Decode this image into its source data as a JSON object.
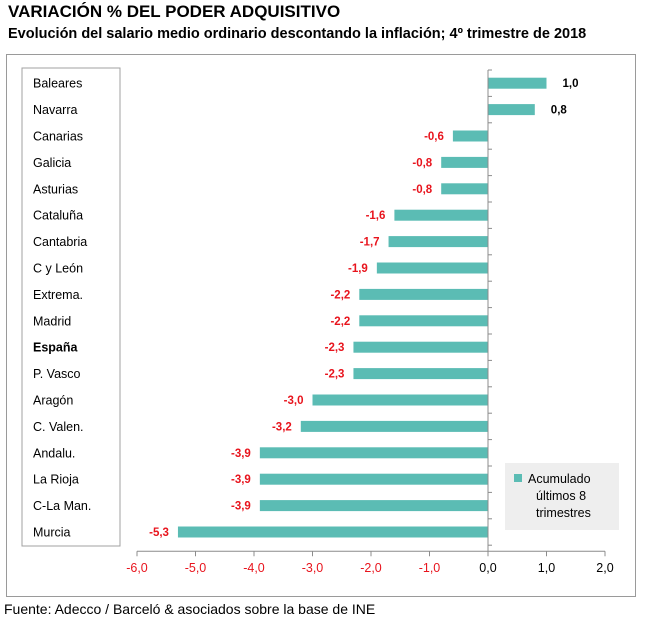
{
  "header": {
    "title": "VARIACIÓN % DEL PODER ADQUISITIVO",
    "subtitle": "Evolución del salario medio ordinario descontando la inflación; 4º trimestre de 2018"
  },
  "footer": {
    "source": "Fuente: Adecco / Barceló & asociados sobre la base de INE"
  },
  "colors": {
    "bar": "#5bbcb4",
    "positive_label": "#000000",
    "negative_label": "#e8141d",
    "negative_tick": "#e8141d",
    "axis": "#8c8c8c",
    "legend_bg": "#eeeeee"
  },
  "chart_data": {
    "type": "bar",
    "orientation": "horizontal",
    "categories": [
      "Baleares",
      "Navarra",
      "Canarias",
      "Galicia",
      "Asturias",
      "Cataluña",
      "Cantabria",
      "C y León",
      "Extrema.",
      "Madrid",
      "España",
      "P. Vasco",
      "Aragón",
      "C. Valen.",
      "Andalu.",
      "La Rioja",
      "C-La Man.",
      "Murcia"
    ],
    "bold_categories": [
      "España"
    ],
    "series": [
      {
        "name": "Acumulado últimos 8 trimestres",
        "values": [
          1.0,
          0.8,
          -0.6,
          -0.8,
          -0.8,
          -1.6,
          -1.7,
          -1.9,
          -2.2,
          -2.2,
          -2.3,
          -2.3,
          -3.0,
          -3.2,
          -3.9,
          -3.9,
          -3.9,
          -5.3
        ]
      }
    ],
    "value_labels": [
      "1,0",
      "0,8",
      "-0,6",
      "-0,8",
      "-0,8",
      "-1,6",
      "-1,7",
      "-1,9",
      "-2,2",
      "-2,2",
      "-2,3",
      "-2,3",
      "-3,0",
      "-3,2",
      "-3,9",
      "-3,9",
      "-3,9",
      "-5,3"
    ],
    "x_ticks": [
      -6,
      -5,
      -4,
      -3,
      -2,
      -1,
      0,
      1,
      2
    ],
    "x_tick_labels": [
      "-6,0",
      "-5,0",
      "-4,0",
      "-3,0",
      "-2,0",
      "-1,0",
      "0,0",
      "1,0",
      "2,0"
    ],
    "xlim": [
      -6,
      2
    ],
    "grid": false,
    "legend": {
      "position": "bottom-right",
      "lines": [
        "Acumulado",
        "últimos 8",
        "trimestres"
      ]
    }
  }
}
